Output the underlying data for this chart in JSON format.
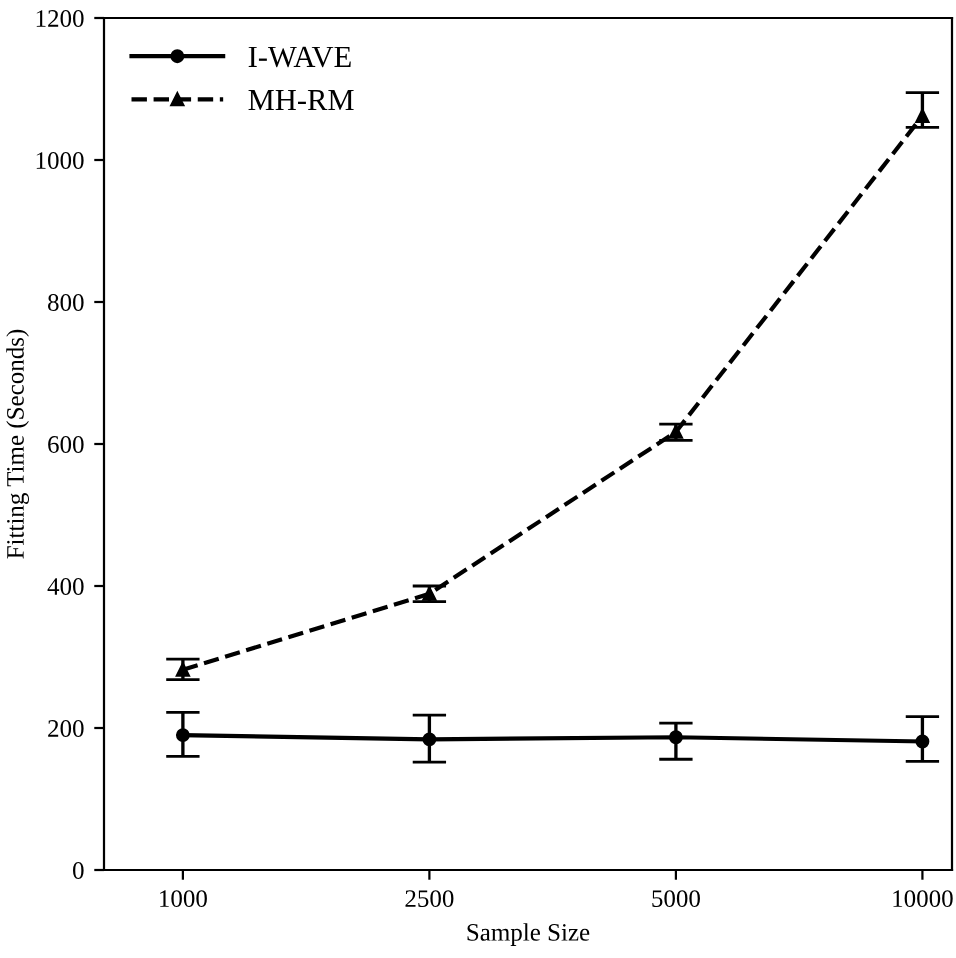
{
  "chart_data": {
    "type": "line",
    "xlabel": "Sample Size",
    "ylabel": "Fitting Time (Seconds)",
    "categories": [
      "1000",
      "2500",
      "5000",
      "10000"
    ],
    "series": [
      {
        "name": "I-WAVE",
        "color": "#000000",
        "values": [
          190,
          184,
          187,
          181
        ],
        "errors": [
          [
            160,
            222
          ],
          [
            152,
            218
          ],
          [
            156,
            207
          ],
          [
            153,
            216
          ]
        ],
        "marker": "circle",
        "line_style": "solid"
      },
      {
        "name": "MH-RM",
        "color": "#000000",
        "values": [
          282,
          389,
          617,
          1062
        ],
        "errors": [
          [
            268,
            297
          ],
          [
            378,
            400
          ],
          [
            605,
            628
          ],
          [
            1046,
            1095
          ]
        ],
        "marker": "triangle",
        "line_style": "dashed"
      }
    ],
    "ylim": [
      0,
      1200
    ],
    "yticks": [
      0,
      200,
      400,
      600,
      800,
      1000,
      1200
    ],
    "grid": false,
    "legend": "top left"
  }
}
